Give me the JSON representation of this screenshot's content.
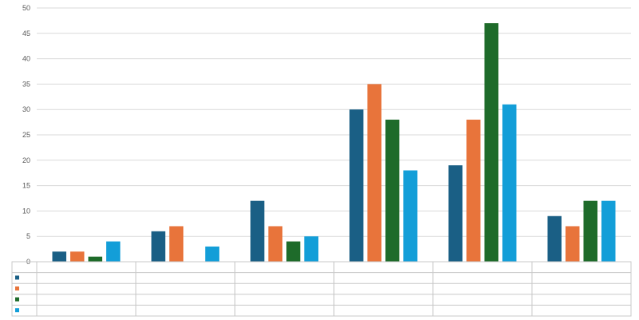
{
  "chart_data": {
    "type": "bar",
    "title": "",
    "xlabel": "",
    "ylabel": "",
    "ylim": [
      0,
      50
    ],
    "y_ticks": [
      "0",
      "5",
      "10",
      "15",
      "20",
      "25",
      "30",
      "35",
      "40",
      "45",
      "50"
    ],
    "grid": true,
    "legend": "data-table-below",
    "categories": [
      "",
      "",
      "",
      "",
      "",
      ""
    ],
    "series": [
      {
        "color": "#1a5f85",
        "values": [
          2,
          6,
          12,
          30,
          19,
          9
        ]
      },
      {
        "color": "#e8743b",
        "values": [
          2,
          7,
          7,
          35,
          28,
          7
        ]
      },
      {
        "color": "#1e6b2a",
        "values": [
          1,
          0,
          4,
          28,
          47,
          12
        ]
      },
      {
        "color": "#139ed8",
        "values": [
          4,
          3,
          5,
          18,
          31,
          12
        ]
      }
    ]
  }
}
